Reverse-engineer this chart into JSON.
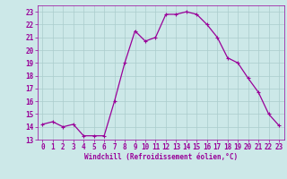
{
  "x": [
    0,
    1,
    2,
    3,
    4,
    5,
    6,
    7,
    8,
    9,
    10,
    11,
    12,
    13,
    14,
    15,
    16,
    17,
    18,
    19,
    20,
    21,
    22,
    23
  ],
  "y": [
    14.2,
    14.4,
    14.0,
    14.2,
    13.3,
    13.3,
    13.3,
    16.0,
    19.0,
    21.5,
    20.7,
    21.0,
    22.8,
    22.8,
    23.0,
    22.8,
    22.0,
    21.0,
    19.4,
    19.0,
    17.8,
    16.7,
    15.0,
    14.1
  ],
  "line_color": "#990099",
  "marker": "+",
  "markersize": 3,
  "linewidth": 0.9,
  "bg_color": "#cce8e8",
  "grid_color": "#aacccc",
  "xlabel": "Windchill (Refroidissement éolien,°C)",
  "xlabel_fontsize": 5.5,
  "tick_fontsize": 5.5,
  "xlim": [
    -0.5,
    23.5
  ],
  "ylim": [
    13,
    23.5
  ],
  "yticks": [
    13,
    14,
    15,
    16,
    17,
    18,
    19,
    20,
    21,
    22,
    23
  ],
  "xticks": [
    0,
    1,
    2,
    3,
    4,
    5,
    6,
    7,
    8,
    9,
    10,
    11,
    12,
    13,
    14,
    15,
    16,
    17,
    18,
    19,
    20,
    21,
    22,
    23
  ]
}
